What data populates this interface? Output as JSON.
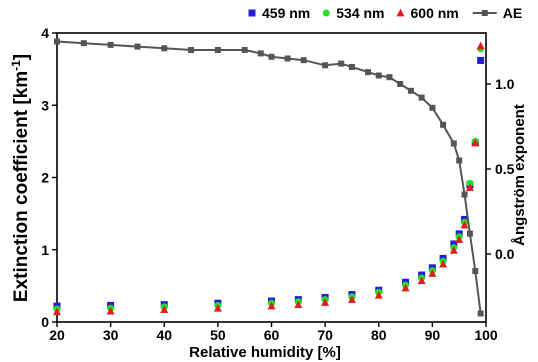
{
  "chart_data": {
    "type": "scatter",
    "xlabel": "Relative humidity [%]",
    "ylabel": "Extinction coefficient [km",
    "ylabel_superscript": "-1",
    "ylabel_closing": "]",
    "y2label": "Ångström exponent",
    "xlim": [
      20,
      100
    ],
    "ylim": [
      0,
      4
    ],
    "y2lim": [
      -0.4,
      1.3
    ],
    "x_ticks": [
      "20",
      "30",
      "40",
      "50",
      "60",
      "70",
      "80",
      "90",
      "100"
    ],
    "y_ticks": [
      "0",
      "1",
      "2",
      "3",
      "4"
    ],
    "y2_ticks": [
      "0.0",
      "0.5",
      "1.0"
    ],
    "grid": false,
    "legend_position": "top",
    "series": [
      {
        "name": "459 nm",
        "axis": "left",
        "marker": "square",
        "color": "#1f1fd6",
        "x": [
          20,
          30,
          40,
          50,
          60,
          65,
          70,
          75,
          80,
          85,
          88,
          90,
          92,
          94,
          95,
          96,
          97,
          98,
          99
        ],
        "values": [
          0.22,
          0.23,
          0.24,
          0.26,
          0.29,
          0.31,
          0.34,
          0.38,
          0.44,
          0.55,
          0.65,
          0.75,
          0.88,
          1.08,
          1.22,
          1.42,
          1.9,
          2.48,
          3.62
        ]
      },
      {
        "name": "534 nm",
        "axis": "left",
        "marker": "circle",
        "color": "#22e022",
        "x": [
          20,
          30,
          40,
          50,
          60,
          65,
          70,
          75,
          80,
          85,
          88,
          90,
          92,
          94,
          95,
          96,
          97,
          98,
          99
        ],
        "values": [
          0.18,
          0.19,
          0.21,
          0.23,
          0.26,
          0.28,
          0.31,
          0.35,
          0.41,
          0.51,
          0.61,
          0.71,
          0.84,
          1.03,
          1.18,
          1.38,
          1.92,
          2.5,
          3.78
        ]
      },
      {
        "name": "600 nm",
        "axis": "left",
        "marker": "triangle",
        "color": "#e01e1e",
        "x": [
          20,
          30,
          40,
          50,
          60,
          65,
          70,
          75,
          80,
          85,
          88,
          90,
          92,
          94,
          95,
          96,
          97,
          98,
          99
        ],
        "values": [
          0.14,
          0.15,
          0.17,
          0.19,
          0.22,
          0.24,
          0.27,
          0.31,
          0.37,
          0.47,
          0.57,
          0.67,
          0.8,
          0.99,
          1.14,
          1.34,
          1.86,
          2.48,
          3.82
        ]
      },
      {
        "name": "AE",
        "axis": "right",
        "marker": "square-line",
        "color": "#555555",
        "x": [
          20,
          25,
          30,
          35,
          40,
          45,
          50,
          55,
          58,
          60,
          63,
          66,
          70,
          73,
          75,
          78,
          80,
          82,
          84,
          86,
          88,
          90,
          92,
          94,
          95,
          96,
          97,
          98,
          99
        ],
        "values": [
          1.25,
          1.24,
          1.23,
          1.22,
          1.21,
          1.2,
          1.2,
          1.2,
          1.18,
          1.16,
          1.15,
          1.14,
          1.11,
          1.12,
          1.1,
          1.07,
          1.05,
          1.04,
          1.0,
          0.96,
          0.92,
          0.86,
          0.76,
          0.65,
          0.55,
          0.35,
          0.12,
          -0.1,
          -0.35
        ]
      }
    ]
  }
}
